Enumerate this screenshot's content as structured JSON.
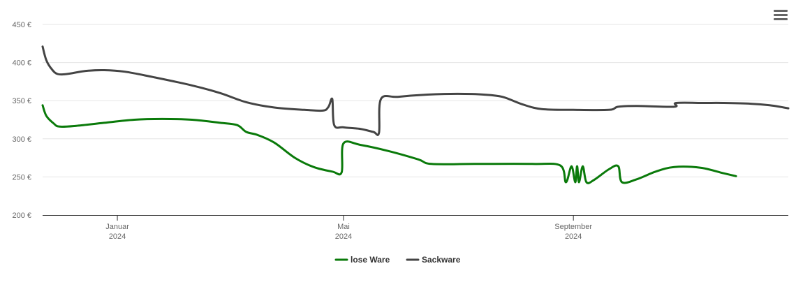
{
  "chart_data": {
    "type": "line",
    "title": "",
    "xlabel": "",
    "ylabel": "",
    "ylim": [
      200,
      450
    ],
    "y_ticks": [
      {
        "value": 200,
        "label": "200 €"
      },
      {
        "value": 250,
        "label": "250 €"
      },
      {
        "value": 300,
        "label": "300 €"
      },
      {
        "value": 350,
        "label": "350 €"
      },
      {
        "value": 400,
        "label": "400 €"
      },
      {
        "value": 450,
        "label": "450 €"
      }
    ],
    "x_range": [
      "2023-11-22",
      "2024-12-25"
    ],
    "x_ticks": [
      {
        "date": "2024-01-01",
        "month": "Januar",
        "year": "2024"
      },
      {
        "date": "2024-05-01",
        "month": "Mai",
        "year": "2024"
      },
      {
        "date": "2024-09-01",
        "month": "September",
        "year": "2024"
      }
    ],
    "grid": true,
    "legend_position": "bottom-center",
    "series": [
      {
        "name": "lose Ware",
        "color": "#0a7a0a",
        "points": [
          [
            "2023-11-22",
            344
          ],
          [
            "2023-11-24",
            330
          ],
          [
            "2023-11-28",
            320
          ],
          [
            "2023-12-01",
            316
          ],
          [
            "2023-12-10",
            317
          ],
          [
            "2023-12-25",
            321
          ],
          [
            "2024-01-10",
            325
          ],
          [
            "2024-01-25",
            326
          ],
          [
            "2024-02-10",
            325
          ],
          [
            "2024-02-25",
            321
          ],
          [
            "2024-03-05",
            318
          ],
          [
            "2024-03-10",
            309
          ],
          [
            "2024-03-16",
            305
          ],
          [
            "2024-03-25",
            295
          ],
          [
            "2024-04-05",
            275
          ],
          [
            "2024-04-15",
            263
          ],
          [
            "2024-04-25",
            257
          ],
          [
            "2024-04-30",
            256
          ],
          [
            "2024-05-01",
            294
          ],
          [
            "2024-05-10",
            292
          ],
          [
            "2024-05-25",
            284
          ],
          [
            "2024-06-10",
            273
          ],
          [
            "2024-06-17",
            267
          ],
          [
            "2024-07-10",
            267
          ],
          [
            "2024-08-10",
            267
          ],
          [
            "2024-08-25",
            265
          ],
          [
            "2024-08-28",
            243
          ],
          [
            "2024-08-31",
            264
          ],
          [
            "2024-09-02",
            243
          ],
          [
            "2024-09-03",
            264
          ],
          [
            "2024-09-04",
            243
          ],
          [
            "2024-09-06",
            264
          ],
          [
            "2024-09-08",
            243
          ],
          [
            "2024-09-12",
            246
          ],
          [
            "2024-09-20",
            260
          ],
          [
            "2024-09-25",
            264
          ],
          [
            "2024-09-27",
            243
          ],
          [
            "2024-10-05",
            247
          ],
          [
            "2024-10-15",
            257
          ],
          [
            "2024-10-25",
            263
          ],
          [
            "2024-11-08",
            262
          ],
          [
            "2024-11-20",
            255
          ],
          [
            "2024-11-27",
            251
          ]
        ]
      },
      {
        "name": "Sackware",
        "color": "#444444",
        "points": [
          [
            "2023-11-22",
            421
          ],
          [
            "2023-11-24",
            403
          ],
          [
            "2023-11-27",
            391
          ],
          [
            "2023-11-30",
            385
          ],
          [
            "2023-12-05",
            385
          ],
          [
            "2023-12-15",
            389
          ],
          [
            "2023-12-25",
            390
          ],
          [
            "2024-01-05",
            388
          ],
          [
            "2024-01-20",
            381
          ],
          [
            "2024-02-10",
            370
          ],
          [
            "2024-02-25",
            360
          ],
          [
            "2024-03-10",
            348
          ],
          [
            "2024-03-25",
            341
          ],
          [
            "2024-04-10",
            338
          ],
          [
            "2024-04-20",
            337
          ],
          [
            "2024-04-23",
            342
          ],
          [
            "2024-04-25",
            352
          ],
          [
            "2024-04-26",
            318
          ],
          [
            "2024-05-01",
            315
          ],
          [
            "2024-05-10",
            313
          ],
          [
            "2024-05-17",
            309
          ],
          [
            "2024-05-20",
            308
          ],
          [
            "2024-05-21",
            352
          ],
          [
            "2024-05-30",
            355
          ],
          [
            "2024-06-15",
            358
          ],
          [
            "2024-07-01",
            359
          ],
          [
            "2024-07-15",
            358
          ],
          [
            "2024-07-25",
            355
          ],
          [
            "2024-08-05",
            345
          ],
          [
            "2024-08-15",
            339
          ],
          [
            "2024-09-01",
            338
          ],
          [
            "2024-09-20",
            338
          ],
          [
            "2024-09-25",
            342
          ],
          [
            "2024-10-05",
            343
          ],
          [
            "2024-10-25",
            342
          ],
          [
            "2024-10-26",
            347
          ],
          [
            "2024-11-10",
            347
          ],
          [
            "2024-11-20",
            347
          ],
          [
            "2024-12-05",
            346
          ],
          [
            "2024-12-15",
            344
          ],
          [
            "2024-12-25",
            340
          ]
        ]
      }
    ]
  }
}
